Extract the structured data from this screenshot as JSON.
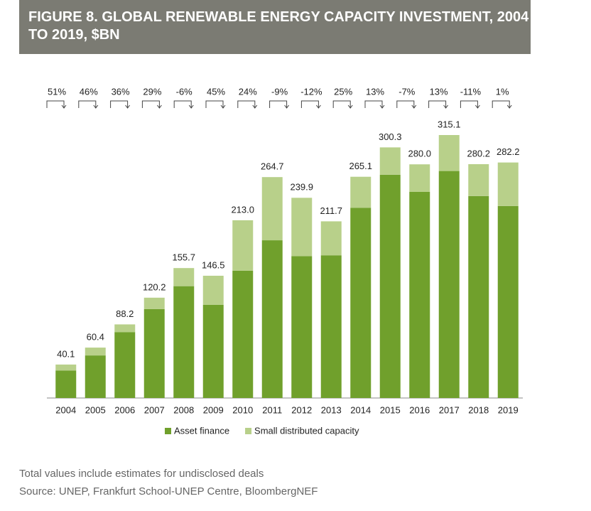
{
  "chart_data": {
    "type": "stacked_bar",
    "title": "FIGURE 8. GLOBAL RENEWABLE ENERGY CAPACITY INVESTMENT, 2004 TO 2019, $BN",
    "categories": [
      "2004",
      "2005",
      "2006",
      "2007",
      "2008",
      "2009",
      "2010",
      "2011",
      "2012",
      "2013",
      "2014",
      "2015",
      "2016",
      "2017",
      "2018",
      "2019"
    ],
    "series": [
      {
        "name": "Asset finance",
        "color": "#70a02c",
        "values": [
          33,
          51,
          79,
          106.5,
          134,
          111.6,
          152.5,
          189,
          170,
          171,
          228,
          267.5,
          247,
          272,
          242,
          230
        ]
      },
      {
        "name": "Small distributed capacity",
        "color": "#b8d08a",
        "values": [
          7.1,
          9.4,
          9.2,
          13.7,
          21.7,
          34.9,
          60.5,
          75.7,
          69.9,
          40.7,
          37.1,
          32.8,
          33,
          43.1,
          38.2,
          52.2
        ]
      }
    ],
    "totals": [
      40.1,
      60.4,
      88.2,
      120.2,
      155.7,
      146.5,
      213.0,
      264.7,
      239.9,
      211.7,
      265.1,
      300.3,
      280.0,
      315.1,
      280.2,
      282.2
    ],
    "total_labels": [
      "40.1",
      "60.4",
      "88.2",
      "120.2",
      "155.7",
      "146.5",
      "213.0",
      "264.7",
      "239.9",
      "211.7",
      "265.1",
      "300.3",
      "280.0",
      "315.1",
      "280.2",
      "282.2"
    ],
    "growth_labels": [
      "51%",
      "46%",
      "36%",
      "29%",
      "-6%",
      "45%",
      "24%",
      "-9%",
      "-12%",
      "25%",
      "13%",
      "-7%",
      "13%",
      "-11%",
      "1%"
    ],
    "notes": [
      "Total values include estimates for undisclosed deals",
      "Source: UNEP, Frankfurt School-UNEP Centre, BloombergNEF"
    ]
  }
}
